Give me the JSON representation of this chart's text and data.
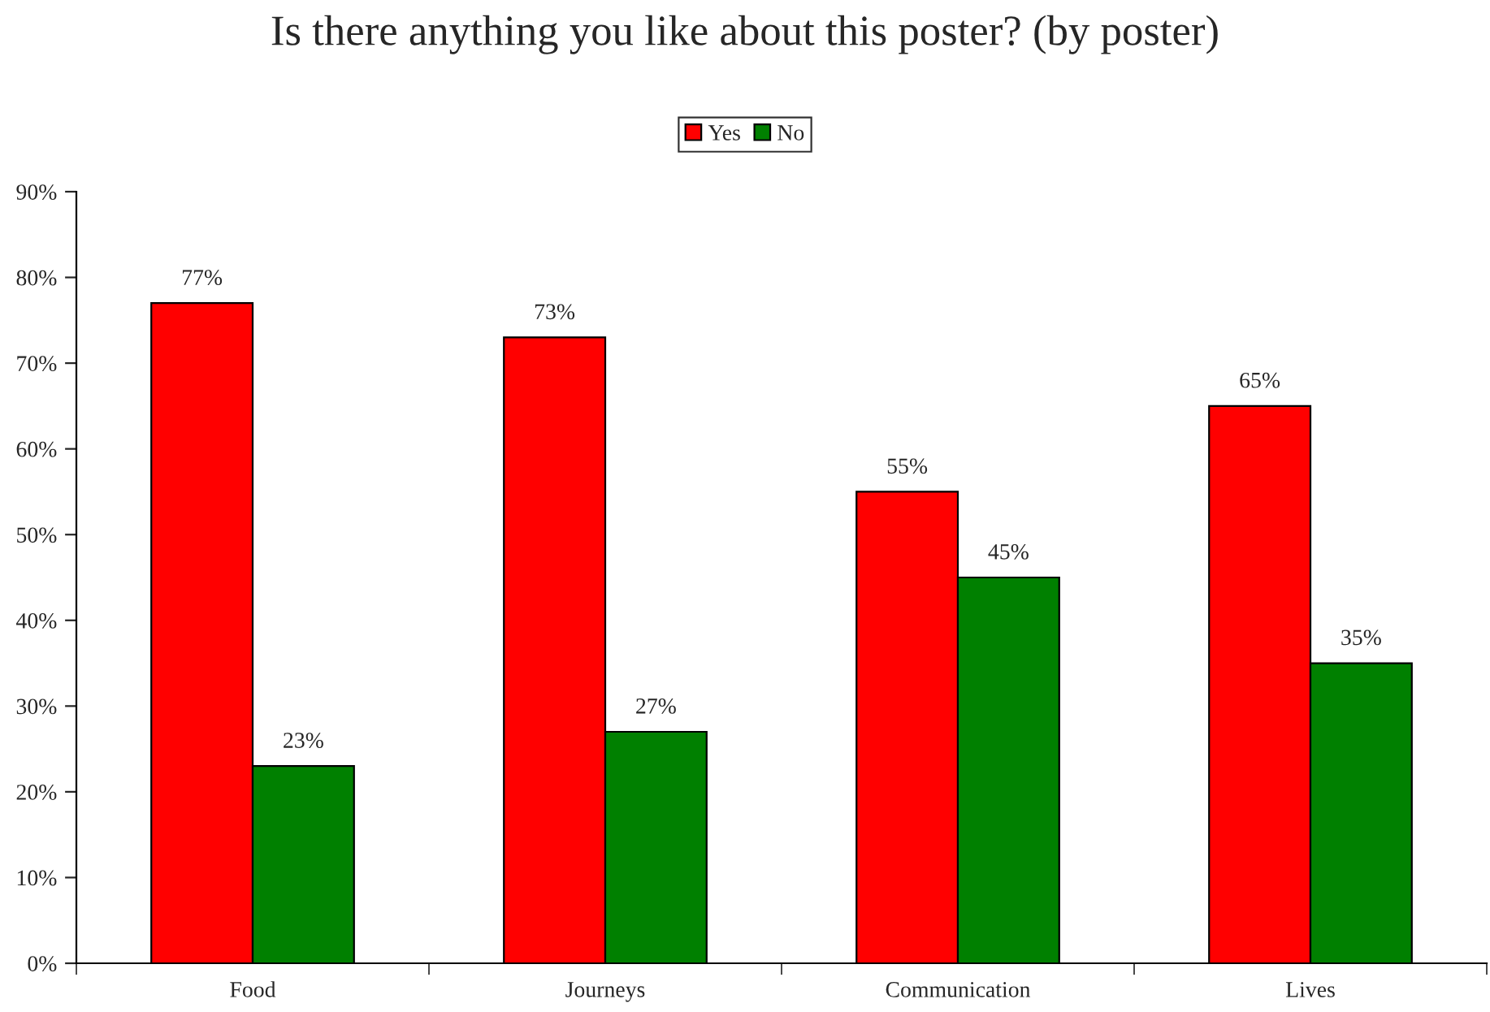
{
  "chart_data": {
    "type": "bar",
    "title": "Is there anything you like about this poster? (by poster)",
    "categories": [
      "Food",
      "Journeys",
      "Communication",
      "Lives"
    ],
    "series": [
      {
        "name": "Yes",
        "color": "#ff0000",
        "values": [
          77,
          73,
          55,
          65
        ],
        "value_labels": [
          "77%",
          "73%",
          "55%",
          "65%"
        ]
      },
      {
        "name": "No",
        "color": "#008000",
        "values": [
          23,
          27,
          45,
          35
        ],
        "value_labels": [
          "23%",
          "27%",
          "45%",
          "35%"
        ]
      }
    ],
    "ylim": [
      0,
      90
    ],
    "yticks": [
      {
        "value": 0,
        "label": "0%"
      },
      {
        "value": 10,
        "label": "10%"
      },
      {
        "value": 20,
        "label": "20%"
      },
      {
        "value": 30,
        "label": "30%"
      },
      {
        "value": 40,
        "label": "40%"
      },
      {
        "value": 50,
        "label": "50%"
      },
      {
        "value": 60,
        "label": "60%"
      },
      {
        "value": 70,
        "label": "70%"
      },
      {
        "value": 80,
        "label": "80%"
      },
      {
        "value": 90,
        "label": "90%"
      }
    ],
    "grid": false,
    "legend": "top"
  }
}
